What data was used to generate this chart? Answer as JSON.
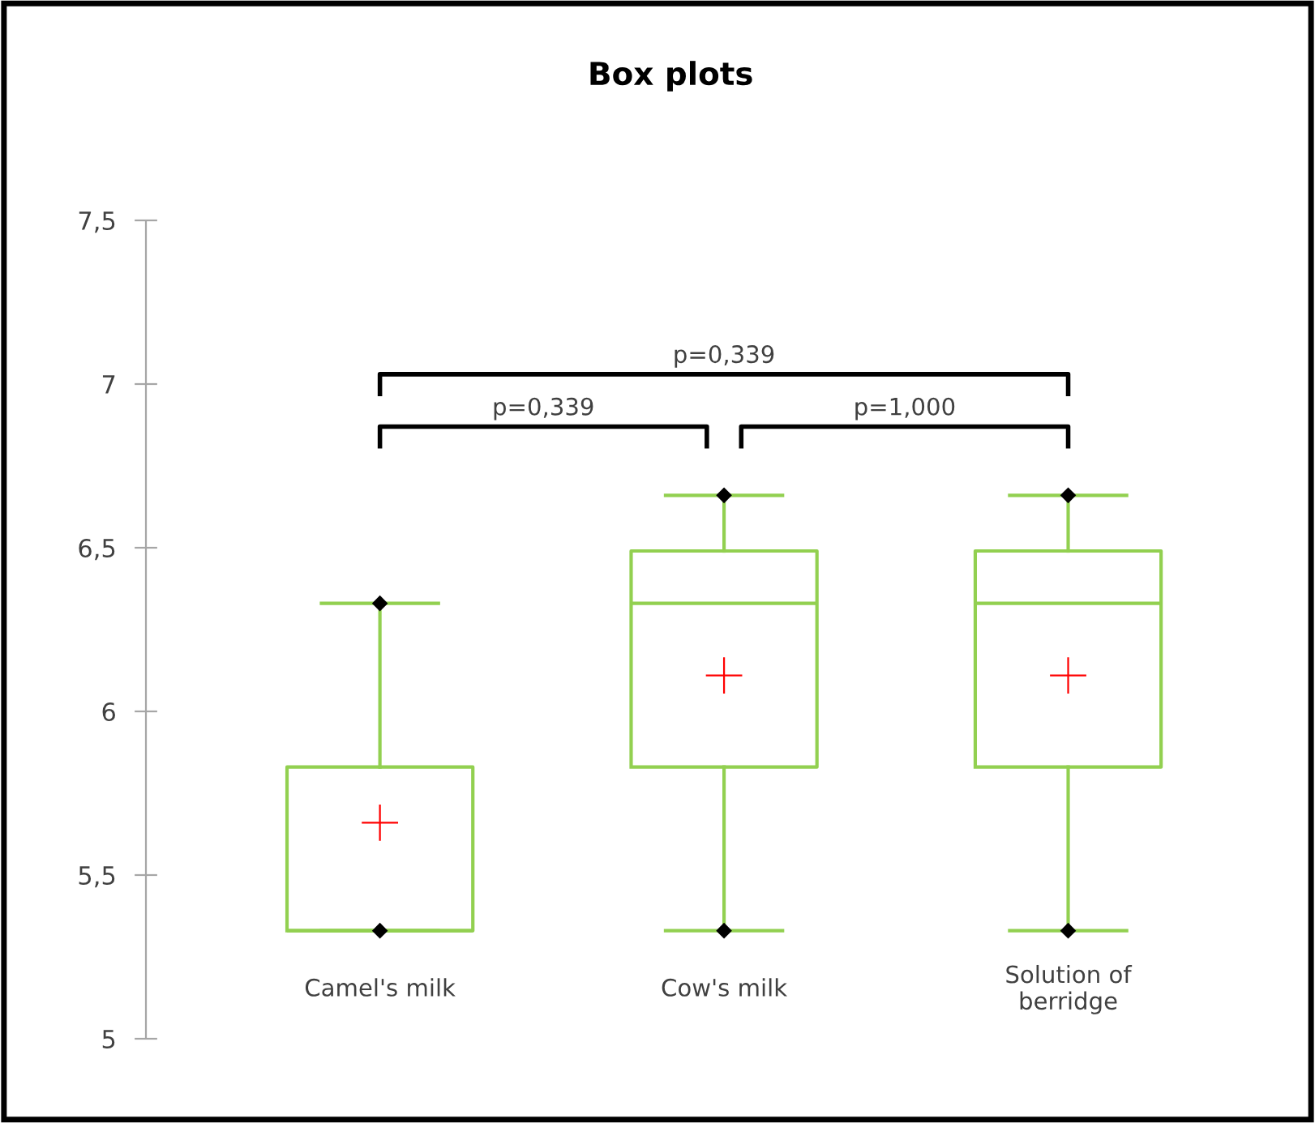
{
  "chart_data": {
    "type": "box",
    "title": "Box plots",
    "categories": [
      "Camel's milk",
      "Cow's milk",
      "Solution of\nberridge"
    ],
    "boxes": [
      {
        "low": 5.33,
        "q1": 5.33,
        "median": 5.33,
        "q3": 5.83,
        "high": 6.33,
        "mean": 5.66
      },
      {
        "low": 5.33,
        "q1": 5.83,
        "median": 6.33,
        "q3": 6.49,
        "high": 6.66,
        "mean": 6.11
      },
      {
        "low": 5.33,
        "q1": 5.83,
        "median": 6.33,
        "q3": 6.49,
        "high": 6.66,
        "mean": 6.11
      }
    ],
    "color": "#92d050",
    "ylim": [
      5,
      7.5
    ],
    "yticks": [
      {
        "value": 5,
        "label": "5"
      },
      {
        "value": 5.5,
        "label": "5,5"
      },
      {
        "value": 6,
        "label": "6"
      },
      {
        "value": 6.5,
        "label": "6,5"
      },
      {
        "value": 7,
        "label": "7"
      },
      {
        "value": 7.5,
        "label": "7,5"
      }
    ],
    "grid": false,
    "annotations": [
      "p=0,339",
      "p=0,339",
      "p=1,000"
    ]
  }
}
